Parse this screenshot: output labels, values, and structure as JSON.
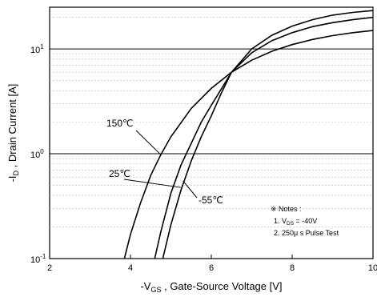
{
  "chart_data": {
    "type": "line",
    "xlabel": {
      "prefix": "-V",
      "sub": "GS",
      "suffix": " , Gate-Source Voltage  [V]"
    },
    "ylabel": {
      "prefix": "-I",
      "sub": "D",
      "suffix": " , Drain Current  [A]"
    },
    "xlim": [
      2,
      10
    ],
    "ylim": [
      0.1,
      25
    ],
    "yscale": "log",
    "xticks": [
      "2",
      "4",
      "6",
      "8",
      "10"
    ],
    "yticks": [
      {
        "value": 0.1,
        "base": "10",
        "exp": "-1"
      },
      {
        "value": 1,
        "base": "10",
        "exp": "0"
      },
      {
        "value": 10,
        "base": "10",
        "exp": "1"
      }
    ],
    "grid": true,
    "series": [
      {
        "name": "150℃",
        "x": [
          3.85,
          4.0,
          4.25,
          4.5,
          4.75,
          5.0,
          5.5,
          6.0,
          6.5,
          7.0,
          7.5,
          8.0,
          8.5,
          9.0,
          9.5,
          10.0
        ],
        "y": [
          0.1,
          0.17,
          0.34,
          0.62,
          0.98,
          1.45,
          2.7,
          4.2,
          6.0,
          7.8,
          9.5,
          11.0,
          12.3,
          13.4,
          14.3,
          15.0
        ]
      },
      {
        "name": "25℃",
        "x": [
          4.6,
          4.75,
          5.0,
          5.25,
          5.5,
          5.75,
          6.0,
          6.5,
          7.0,
          7.5,
          8.0,
          8.5,
          9.0,
          9.5,
          10.0
        ],
        "y": [
          0.1,
          0.18,
          0.42,
          0.78,
          1.25,
          2.0,
          2.9,
          6.0,
          9.2,
          12.0,
          14.3,
          16.3,
          17.8,
          19.0,
          20.0
        ]
      },
      {
        "name": "-55℃",
        "x": [
          4.8,
          5.0,
          5.25,
          5.5,
          5.75,
          6.0,
          6.25,
          6.5,
          7.0,
          7.5,
          8.0,
          8.5,
          9.0,
          9.5,
          10.0
        ],
        "y": [
          0.1,
          0.21,
          0.45,
          0.85,
          1.45,
          2.3,
          3.8,
          6.0,
          10.0,
          13.5,
          16.5,
          19.0,
          21.0,
          22.3,
          23.2
        ]
      }
    ],
    "labels": [
      "150℃",
      "25℃",
      "-55℃"
    ],
    "notes": {
      "title": "※ Notes :",
      "line1_prefix": "1. V",
      "line1_sub": "DS",
      "line1_suffix": " = -40V",
      "line2": "2. 250μ s Pulse Test"
    }
  }
}
